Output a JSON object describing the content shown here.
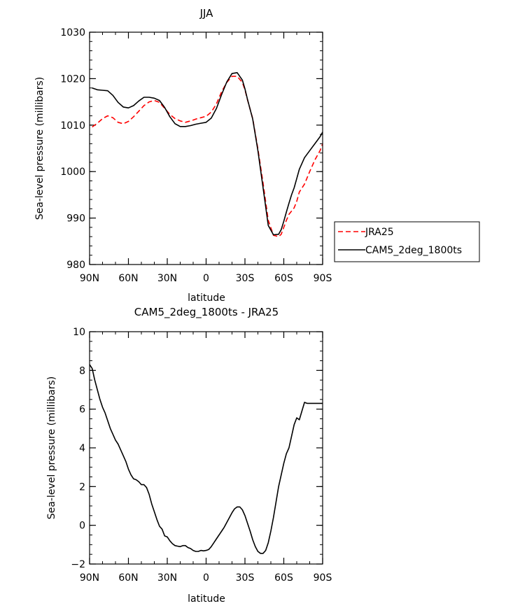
{
  "chart_data": [
    {
      "type": "line",
      "title": "JJA",
      "xlabel": "latitude",
      "ylabel": "Sea-level pressure (millibars)",
      "xlim": [
        -90,
        90
      ],
      "ylim": [
        980,
        1030
      ],
      "xticks": [
        -90,
        -60,
        -30,
        0,
        30,
        60,
        90
      ],
      "xtick_labels": [
        "90N",
        "60N",
        "30N",
        "0",
        "30S",
        "60S",
        "90S"
      ],
      "yticks": [
        980,
        990,
        1000,
        1010,
        1020,
        1030
      ],
      "ytick_labels": [
        "980",
        "990",
        "1000",
        "1010",
        "1020",
        "1030"
      ],
      "legend_position": "right",
      "series": [
        {
          "name": "JRA25",
          "color": "#ff0000",
          "dash": "dashed",
          "x": [
            -88,
            -84,
            -80,
            -76,
            -72,
            -68,
            -64,
            -60,
            -56,
            -52,
            -48,
            -44,
            -40,
            -36,
            -32,
            -28,
            -24,
            -20,
            -16,
            -12,
            -8,
            -4,
            0,
            4,
            8,
            12,
            16,
            20,
            24,
            28,
            30,
            32,
            36,
            40,
            44,
            48,
            52,
            56,
            58,
            60,
            62,
            64,
            66,
            68,
            70,
            72,
            76,
            80,
            84,
            88,
            90
          ],
          "values": [
            1009.6,
            1010.4,
            1011.4,
            1012.0,
            1011.6,
            1010.6,
            1010.3,
            1010.8,
            1011.8,
            1013.0,
            1014.2,
            1015.0,
            1015.3,
            1014.9,
            1013.6,
            1012.3,
            1011.4,
            1010.9,
            1010.6,
            1010.9,
            1011.3,
            1011.6,
            1011.9,
            1012.8,
            1014.6,
            1017.2,
            1019.2,
            1020.5,
            1020.5,
            1019.2,
            1017.6,
            1015.4,
            1011.4,
            1004.9,
            997.5,
            989.5,
            986.3,
            986.0,
            986.5,
            988.0,
            989.5,
            990.8,
            991.5,
            992.2,
            993.6,
            995.6,
            997.3,
            1000.0,
            1002.5,
            1004.5,
            1006.0
          ]
        },
        {
          "name": "CAM5_2deg_1800ts",
          "color": "#000000",
          "dash": "solid",
          "x": [
            -88,
            -84,
            -80,
            -76,
            -72,
            -68,
            -64,
            -60,
            -56,
            -52,
            -48,
            -44,
            -40,
            -36,
            -32,
            -28,
            -24,
            -20,
            -16,
            -12,
            -8,
            -4,
            0,
            4,
            8,
            12,
            16,
            20,
            24,
            28,
            30,
            32,
            36,
            40,
            44,
            48,
            52,
            56,
            58,
            60,
            62,
            64,
            66,
            68,
            70,
            72,
            76,
            80,
            84,
            88,
            90
          ],
          "values": [
            1018.0,
            1017.6,
            1017.5,
            1017.4,
            1016.4,
            1014.9,
            1013.9,
            1013.7,
            1014.2,
            1015.2,
            1016.0,
            1016.0,
            1015.8,
            1015.3,
            1013.8,
            1011.8,
            1010.3,
            1009.7,
            1009.7,
            1009.9,
            1010.2,
            1010.4,
            1010.6,
            1011.5,
            1013.6,
            1016.6,
            1019.3,
            1021.1,
            1021.3,
            1019.7,
            1017.8,
            1015.5,
            1011.3,
            1004.5,
            996.5,
            988.4,
            986.4,
            986.5,
            987.5,
            989.3,
            991.3,
            993.2,
            995.0,
            996.5,
            998.5,
            1000.5,
            1003.0,
            1004.5,
            1006.0,
            1007.5,
            1008.5
          ]
        }
      ]
    },
    {
      "type": "line",
      "title": "CAM5_2deg_1800ts - JRA25",
      "xlabel": "latitude",
      "ylabel": "Sea-level pressure (millibars)",
      "xlim": [
        -90,
        90
      ],
      "ylim": [
        -2,
        10
      ],
      "xticks": [
        -90,
        -60,
        -30,
        0,
        30,
        60,
        90
      ],
      "xtick_labels": [
        "90N",
        "60N",
        "30N",
        "0",
        "30S",
        "60S",
        "90S"
      ],
      "yticks": [
        -2,
        0,
        2,
        4,
        6,
        8,
        10
      ],
      "ytick_labels": [
        "−2",
        "0",
        "2",
        "4",
        "6",
        "8",
        "10"
      ],
      "series": [
        {
          "name": "CAM5_2deg_1800ts - JRA25",
          "color": "#000000",
          "dash": "solid",
          "x": [
            -90,
            -88,
            -86,
            -84,
            -82,
            -80,
            -78,
            -76,
            -74,
            -72,
            -70,
            -68,
            -66,
            -64,
            -62,
            -60,
            -58,
            -56,
            -54,
            -52,
            -50,
            -48,
            -46,
            -44,
            -42,
            -40,
            -38,
            -36,
            -34,
            -32,
            -30,
            -28,
            -26,
            -24,
            -22,
            -20,
            -18,
            -16,
            -14,
            -12,
            -10,
            -8,
            -6,
            -4,
            -2,
            0,
            2,
            4,
            6,
            8,
            10,
            12,
            14,
            16,
            18,
            20,
            22,
            24,
            26,
            28,
            30,
            32,
            34,
            36,
            38,
            40,
            42,
            44,
            46,
            48,
            50,
            52,
            54,
            56,
            58,
            60,
            62,
            64,
            66,
            68,
            70,
            72,
            74,
            76,
            78,
            80,
            82,
            84,
            86,
            88,
            90
          ],
          "values": [
            8.3,
            8.1,
            7.5,
            7.0,
            6.5,
            6.1,
            5.8,
            5.4,
            5.0,
            4.7,
            4.4,
            4.2,
            3.9,
            3.6,
            3.3,
            2.9,
            2.6,
            2.4,
            2.35,
            2.25,
            2.1,
            2.1,
            1.95,
            1.6,
            1.1,
            0.7,
            0.3,
            -0.05,
            -0.2,
            -0.55,
            -0.6,
            -0.8,
            -0.95,
            -1.05,
            -1.08,
            -1.1,
            -1.05,
            -1.05,
            -1.15,
            -1.2,
            -1.3,
            -1.35,
            -1.35,
            -1.3,
            -1.32,
            -1.3,
            -1.25,
            -1.1,
            -0.9,
            -0.7,
            -0.5,
            -0.3,
            -0.1,
            0.15,
            0.4,
            0.65,
            0.85,
            0.95,
            0.95,
            0.8,
            0.5,
            0.1,
            -0.3,
            -0.75,
            -1.1,
            -1.35,
            -1.45,
            -1.45,
            -1.3,
            -0.9,
            -0.3,
            0.4,
            1.2,
            2.0,
            2.6,
            3.2,
            3.7,
            4.0,
            4.6,
            5.2,
            5.55,
            5.45,
            5.9,
            6.35,
            6.3,
            6.3,
            6.3,
            6.3,
            6.3,
            6.3,
            6.3
          ]
        }
      ]
    }
  ]
}
